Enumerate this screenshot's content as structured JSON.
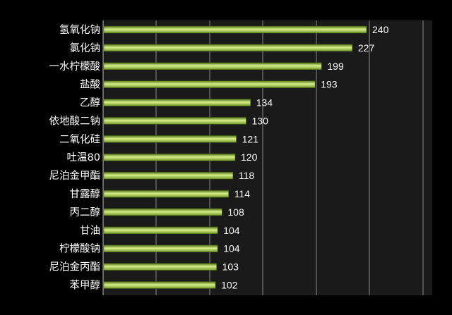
{
  "chart_data": {
    "type": "bar",
    "orientation": "horizontal",
    "categories": [
      "氢氧化钠",
      "氯化钠",
      "一水柠檬酸",
      "盐酸",
      "乙醇",
      "依地酸二钠",
      "二氧化硅",
      "吐温80",
      "尼泊金甲酯",
      "甘露醇",
      "丙二醇",
      "甘油",
      "柠檬酸钠",
      "尼泊金丙酯",
      "苯甲醇"
    ],
    "values": [
      240,
      227,
      199,
      193,
      134,
      130,
      121,
      120,
      118,
      114,
      108,
      104,
      104,
      103,
      102
    ],
    "title": "",
    "xlabel": "",
    "ylabel": "",
    "xlim": [
      0,
      240
    ],
    "grid": true,
    "legend": "none",
    "colors": {
      "background": "#000000",
      "plot_area": "#1a1a1a",
      "gridline": "#8a8a8a",
      "bar_light": "#d8f08a",
      "bar_mid": "#9ac43a",
      "bar_dark": "#4e6e14",
      "text": "#ffffff"
    }
  }
}
